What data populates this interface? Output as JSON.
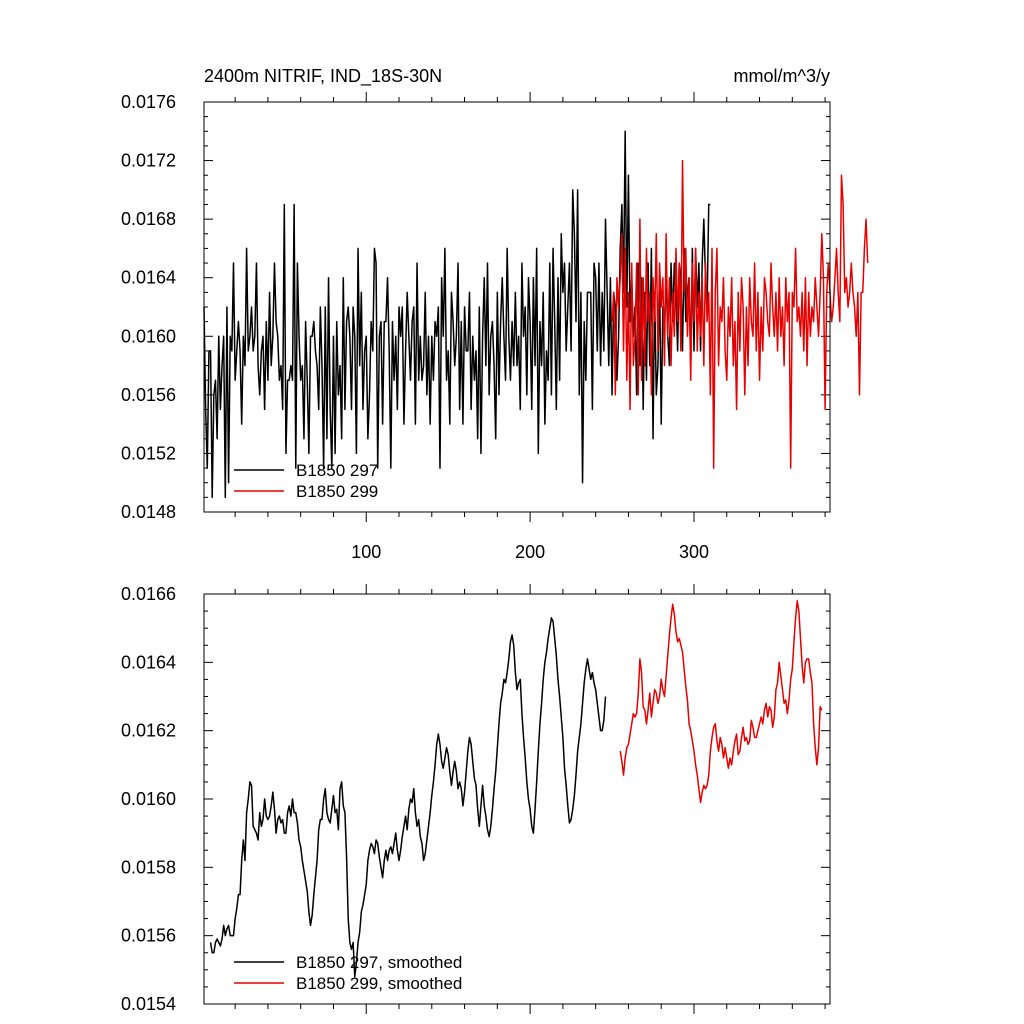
{
  "chart_data": [
    {
      "type": "line",
      "title_left": "2400m NITRIF, IND_18S-30N",
      "title_right": "mmol/m^3/y",
      "xlabel": "",
      "ylabel": "",
      "xlim": [
        1,
        383
      ],
      "ylim": [
        0.0148,
        0.0176
      ],
      "x_ticks": [
        100,
        200,
        300
      ],
      "x_tick_labels": [
        "100",
        "200",
        "300"
      ],
      "y_ticks": [
        0.0148,
        0.0152,
        0.0156,
        0.016,
        0.0164,
        0.0168,
        0.0172,
        0.0176
      ],
      "y_tick_labels": [
        "0.0148",
        "0.0152",
        "0.0156",
        "0.0160",
        "0.0164",
        "0.0168",
        "0.0172",
        "0.0176"
      ],
      "legend_position": "bottom-left",
      "series": [
        {
          "name": "B1850 297",
          "color": "#000000",
          "x_start": 1,
          "x_step": 1,
          "values": [
            0.0162,
            0.0155,
            0.0151,
            0.0159,
            0.0159,
            0.0149,
            0.0156,
            0.0157,
            0.0153,
            0.016,
            0.0155,
            0.0158,
            0.016,
            0.0149,
            0.0162,
            0.015,
            0.016,
            0.0159,
            0.0165,
            0.0157,
            0.0159,
            0.0161,
            0.0159,
            0.0154,
            0.016,
            0.0158,
            0.0166,
            0.0159,
            0.016,
            0.0162,
            0.0159,
            0.016,
            0.0165,
            0.0158,
            0.0156,
            0.0159,
            0.016,
            0.0155,
            0.0161,
            0.0157,
            0.0163,
            0.0158,
            0.016,
            0.0165,
            0.0161,
            0.016,
            0.0157,
            0.0158,
            0.0155,
            0.0169,
            0.0152,
            0.0157,
            0.0157,
            0.0158,
            0.0157,
            0.0169,
            0.0151,
            0.0165,
            0.016,
            0.0157,
            0.0158,
            0.0153,
            0.0161,
            0.0157,
            0.0152,
            0.016,
            0.016,
            0.0161,
            0.0159,
            0.0158,
            0.0155,
            0.0162,
            0.0158,
            0.0151,
            0.0162,
            0.0153,
            0.0164,
            0.0155,
            0.0151,
            0.016,
            0.0152,
            0.0161,
            0.0156,
            0.0158,
            0.0153,
            0.0164,
            0.0155,
            0.0161,
            0.0162,
            0.016,
            0.0155,
            0.0162,
            0.016,
            0.0152,
            0.0166,
            0.0158,
            0.0163,
            0.0155,
            0.0159,
            0.016,
            0.0153,
            0.0156,
            0.0161,
            0.0159,
            0.0166,
            0.0165,
            0.0151,
            0.016,
            0.0161,
            0.0154,
            0.0161,
            0.0161,
            0.0164,
            0.0159,
            0.0151,
            0.0161,
            0.0157,
            0.016,
            0.0155,
            0.0162,
            0.016,
            0.0162,
            0.0154,
            0.0159,
            0.0163,
            0.016,
            0.0157,
            0.0161,
            0.0162,
            0.0154,
            0.0165,
            0.0157,
            0.016,
            0.0157,
            0.0158,
            0.0163,
            0.0156,
            0.016,
            0.0154,
            0.016,
            0.0157,
            0.0161,
            0.016,
            0.0162,
            0.0151,
            0.0164,
            0.016,
            0.0166,
            0.0157,
            0.0159,
            0.0154,
            0.0163,
            0.0161,
            0.0158,
            0.016,
            0.0165,
            0.0155,
            0.0161,
            0.0154,
            0.0162,
            0.0159,
            0.0159,
            0.0163,
            0.0155,
            0.016,
            0.0157,
            0.0159,
            0.0153,
            0.0162,
            0.0152,
            0.016,
            0.0164,
            0.0158,
            0.0165,
            0.0156,
            0.016,
            0.0161,
            0.0158,
            0.0153,
            0.0163,
            0.0156,
            0.0161,
            0.0164,
            0.016,
            0.0157,
            0.0166,
            0.016,
            0.0157,
            0.0161,
            0.0158,
            0.0163,
            0.0158,
            0.016,
            0.0155,
            0.0165,
            0.016,
            0.0162,
            0.0156,
            0.0164,
            0.0161,
            0.0155,
            0.0164,
            0.0158,
            0.0166,
            0.0152,
            0.0161,
            0.0158,
            0.0163,
            0.0154,
            0.0159,
            0.0157,
            0.0165,
            0.0156,
            0.0166,
            0.0161,
            0.0155,
            0.0164,
            0.0157,
            0.0167,
            0.0163,
            0.0165,
            0.0159,
            0.0162,
            0.0165,
            0.0159,
            0.017,
            0.0167,
            0.0161,
            0.017,
            0.0156,
            0.0163,
            0.015,
            0.0161,
            0.0157,
            0.0163,
            0.0163,
            0.0163,
            0.0155,
            0.0165,
            0.0164,
            0.0159,
            0.0165,
            0.0158,
            0.0163,
            0.0159,
            0.0168,
            0.0163,
            0.0158,
            0.0164,
            0.0156,
            0.0163,
            0.0162,
            0.0157,
            0.016,
            0.0166,
            0.0169,
            0.0163,
            0.0174,
            0.0162,
            0.0171,
            0.0161,
            0.0164,
            0.016,
            0.0162,
            0.0156,
            0.0165,
            0.0158,
            0.0164,
            0.0155,
            0.0163,
            0.0157,
            0.0165,
            0.0158,
            0.0166,
            0.0153,
            0.0163,
            0.0156,
            0.0158,
            0.0164,
            0.0154,
            0.0162,
            0.0161,
            0.0164,
            0.016,
            0.0158,
            0.0165,
            0.0161,
            0.0165,
            0.0163,
            0.0159,
            0.0165,
            0.0164,
            0.0159,
            0.0166,
            0.0161,
            0.0163,
            0.0164,
            0.0158,
            0.0166,
            0.0159,
            0.0166,
            0.0162,
            0.0165,
            0.0159,
            0.0165,
            0.0168,
            0.0164,
            0.0162,
            0.0169,
            0.0169
          ]
        },
        {
          "name": "B1850 299",
          "color": "#e60000",
          "x_start": 250,
          "x_step": 1,
          "values": [
            0.0161,
            0.0163,
            0.0156,
            0.0164,
            0.0162,
            0.0164,
            0.0167,
            0.0159,
            0.0166,
            0.0157,
            0.0163,
            0.0155,
            0.0165,
            0.0158,
            0.016,
            0.0165,
            0.0156,
            0.0168,
            0.0157,
            0.0164,
            0.0158,
            0.0166,
            0.0161,
            0.0163,
            0.0156,
            0.0164,
            0.0161,
            0.0167,
            0.0159,
            0.0165,
            0.0162,
            0.0164,
            0.0158,
            0.0167,
            0.016,
            0.0164,
            0.0158,
            0.0163,
            0.016,
            0.0166,
            0.0161,
            0.0165,
            0.0159,
            0.0172,
            0.0163,
            0.0166,
            0.016,
            0.0164,
            0.0157,
            0.0165,
            0.0161,
            0.0166,
            0.0159,
            0.0163,
            0.016,
            0.0164,
            0.0158,
            0.0165,
            0.0161,
            0.0163,
            0.0156,
            0.0166,
            0.0151,
            0.0163,
            0.0166,
            0.0158,
            0.0162,
            0.0161,
            0.0164,
            0.0159,
            0.0157,
            0.0162,
            0.016,
            0.0164,
            0.0158,
            0.0161,
            0.0155,
            0.0163,
            0.0159,
            0.0164,
            0.0162,
            0.0156,
            0.0162,
            0.0158,
            0.0164,
            0.0161,
            0.016,
            0.0165,
            0.0159,
            0.0163,
            0.0157,
            0.0162,
            0.0159,
            0.0164,
            0.0163,
            0.0161,
            0.016,
            0.0165,
            0.0162,
            0.016,
            0.0163,
            0.0159,
            0.0164,
            0.016,
            0.0162,
            0.0158,
            0.0164,
            0.0161,
            0.0163,
            0.0151,
            0.0163,
            0.0162,
            0.0166,
            0.0161,
            0.0162,
            0.016,
            0.0163,
            0.0159,
            0.0164,
            0.0158,
            0.0163,
            0.016,
            0.0162,
            0.0161,
            0.0164,
            0.0162,
            0.016,
            0.0163,
            0.0167,
            0.0164,
            0.0155,
            0.0163,
            0.0165,
            0.0163,
            0.0161,
            0.0162,
            0.0164,
            0.0166,
            0.0163,
            0.0161,
            0.0171,
            0.0169,
            0.0163,
            0.0164,
            0.0162,
            0.0163,
            0.0165,
            0.0163,
            0.0162,
            0.016,
            0.0163,
            0.0156,
            0.0163,
            0.0163,
            0.0166,
            0.0168,
            0.0165
          ]
        }
      ]
    },
    {
      "type": "line",
      "title_left": "",
      "title_right": "",
      "xlabel": "",
      "ylabel": "",
      "xlim": [
        1,
        383
      ],
      "ylim": [
        0.0154,
        0.0166
      ],
      "x_ticks": [
        100,
        200,
        300
      ],
      "x_tick_labels": [],
      "y_ticks": [
        0.0154,
        0.0156,
        0.0158,
        0.016,
        0.0162,
        0.0164,
        0.0166
      ],
      "y_tick_labels": [
        "0.0154",
        "0.0156",
        "0.0158",
        "0.0160",
        "0.0162",
        "0.0164",
        "0.0166"
      ],
      "legend_position": "bottom-left",
      "series": [
        {
          "name": "B1850 297, smoothed",
          "color": "#000000",
          "x_start": 5,
          "x_step": 1,
          "values": [
            0.01558,
            0.01555,
            0.01555,
            0.01558,
            0.01559,
            0.01558,
            0.01557,
            0.01559,
            0.01563,
            0.0156,
            0.01562,
            0.01563,
            0.0156,
            0.0156,
            0.0156,
            0.01565,
            0.01568,
            0.01572,
            0.01572,
            0.01582,
            0.01588,
            0.01582,
            0.01596,
            0.016,
            0.01605,
            0.01604,
            0.01592,
            0.01591,
            0.0159,
            0.01588,
            0.01596,
            0.01592,
            0.01594,
            0.016,
            0.01595,
            0.01594,
            0.01595,
            0.01598,
            0.01602,
            0.01597,
            0.0159,
            0.01594,
            0.01595,
            0.01593,
            0.01594,
            0.0159,
            0.0159,
            0.01596,
            0.01598,
            0.01595,
            0.016,
            0.01596,
            0.01596,
            0.01593,
            0.01588,
            0.01586,
            0.01582,
            0.01579,
            0.01576,
            0.01573,
            0.01567,
            0.01563,
            0.01566,
            0.01572,
            0.01577,
            0.01582,
            0.01591,
            0.01594,
            0.01594,
            0.016,
            0.01603,
            0.01596,
            0.01594,
            0.01593,
            0.01597,
            0.01601,
            0.01596,
            0.01597,
            0.01591,
            0.01603,
            0.01605,
            0.01598,
            0.01596,
            0.01583,
            0.01565,
            0.01558,
            0.01556,
            0.01558,
            0.01548,
            0.01552,
            0.01558,
            0.01561,
            0.01567,
            0.01569,
            0.01572,
            0.01575,
            0.01582,
            0.01585,
            0.01587,
            0.01586,
            0.01584,
            0.01588,
            0.01587,
            0.01583,
            0.0158,
            0.01577,
            0.01582,
            0.01585,
            0.01582,
            0.01585,
            0.01586,
            0.01584,
            0.01587,
            0.0159,
            0.01585,
            0.01582,
            0.01585,
            0.01589,
            0.01592,
            0.01595,
            0.01591,
            0.01597,
            0.016,
            0.01599,
            0.01603,
            0.01596,
            0.01592,
            0.01594,
            0.01589,
            0.01587,
            0.01582,
            0.01584,
            0.01588,
            0.01592,
            0.01596,
            0.01601,
            0.01605,
            0.0161,
            0.01616,
            0.01619,
            0.01616,
            0.01611,
            0.01609,
            0.01612,
            0.01615,
            0.01613,
            0.01608,
            0.01604,
            0.01608,
            0.01611,
            0.01608,
            0.01603,
            0.01605,
            0.01603,
            0.01598,
            0.01602,
            0.01608,
            0.01614,
            0.01618,
            0.01616,
            0.01611,
            0.01606,
            0.01604,
            0.01597,
            0.01592,
            0.01598,
            0.01604,
            0.01598,
            0.01595,
            0.01591,
            0.01589,
            0.01592,
            0.01597,
            0.01603,
            0.01608,
            0.01615,
            0.01622,
            0.01628,
            0.01631,
            0.01635,
            0.01634,
            0.01637,
            0.01641,
            0.01646,
            0.01648,
            0.01645,
            0.01637,
            0.01632,
            0.01634,
            0.01635,
            0.01625,
            0.01618,
            0.01612,
            0.01605,
            0.016,
            0.01597,
            0.01592,
            0.0159,
            0.01597,
            0.01605,
            0.01614,
            0.01622,
            0.01628,
            0.01635,
            0.0164,
            0.01643,
            0.01647,
            0.0165,
            0.01653,
            0.01652,
            0.01647,
            0.01642,
            0.01635,
            0.0163,
            0.01624,
            0.01618,
            0.01609,
            0.01604,
            0.01598,
            0.01593,
            0.01594,
            0.01597,
            0.01601,
            0.01607,
            0.01614,
            0.01618,
            0.01622,
            0.01628,
            0.01634,
            0.01638,
            0.01641,
            0.01638,
            0.01635,
            0.01637,
            0.01634,
            0.01632,
            0.01628,
            0.01624,
            0.0162,
            0.0162,
            0.01623,
            0.0163
          ]
        },
        {
          "name": "B1850 299, smoothed",
          "color": "#e60000",
          "x_start": 255,
          "x_step": 1,
          "values": [
            0.01614,
            0.01611,
            0.01607,
            0.01612,
            0.01615,
            0.01616,
            0.01619,
            0.01622,
            0.01625,
            0.01624,
            0.01625,
            0.01631,
            0.01641,
            0.01637,
            0.01627,
            0.01626,
            0.01622,
            0.01626,
            0.01631,
            0.01624,
            0.01628,
            0.01632,
            0.01631,
            0.01628,
            0.0163,
            0.01635,
            0.01632,
            0.0163,
            0.01636,
            0.01642,
            0.01648,
            0.01653,
            0.01657,
            0.01654,
            0.01649,
            0.01646,
            0.01647,
            0.01645,
            0.01643,
            0.01638,
            0.01633,
            0.01629,
            0.01622,
            0.0162,
            0.01617,
            0.01614,
            0.0161,
            0.01607,
            0.01603,
            0.01599,
            0.01602,
            0.01604,
            0.01603,
            0.01604,
            0.01607,
            0.01614,
            0.01618,
            0.01621,
            0.01622,
            0.01617,
            0.01614,
            0.01618,
            0.01616,
            0.01612,
            0.01615,
            0.01612,
            0.01609,
            0.01612,
            0.0161,
            0.01614,
            0.01617,
            0.01619,
            0.01613,
            0.01614,
            0.01618,
            0.01621,
            0.01617,
            0.01618,
            0.01616,
            0.01617,
            0.01623,
            0.01621,
            0.01618,
            0.01618,
            0.0162,
            0.01622,
            0.01624,
            0.01622,
            0.01626,
            0.01628,
            0.01624,
            0.01627,
            0.01626,
            0.01621,
            0.01624,
            0.01632,
            0.01634,
            0.0164,
            0.01636,
            0.01632,
            0.01628,
            0.01629,
            0.01625,
            0.01629,
            0.01635,
            0.01638,
            0.01646,
            0.01653,
            0.01658,
            0.01655,
            0.01647,
            0.01639,
            0.01634,
            0.0164,
            0.01641,
            0.01641,
            0.01637,
            0.01634,
            0.01622,
            0.01615,
            0.0161,
            0.01615,
            0.01627,
            0.01626
          ]
        }
      ]
    }
  ]
}
